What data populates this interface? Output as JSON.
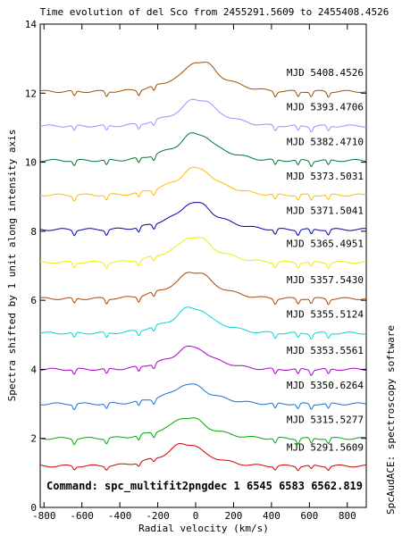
{
  "chart_data": {
    "type": "line",
    "title": "Time evolution of del Sco  from 2455291.5609 to 2455408.4526",
    "xlabel": "Radial velocity (km/s)",
    "ylabel": "Spectra shifted by 1 unit along intensity axis",
    "right_label": "SpcAudACE: spectroscopy software",
    "command": "Command: spc_multifit2pngdec 1 6545 6583 6562.819",
    "xlim": [
      -820,
      900
    ],
    "ylim": [
      0,
      14
    ],
    "x_ticks": [
      -800,
      -600,
      -400,
      -200,
      0,
      200,
      400,
      600,
      800
    ],
    "x_tick_labels": [
      "-800",
      "-600",
      "-400",
      "-200",
      "0",
      "200",
      "400",
      "600",
      "800"
    ],
    "y_ticks": [
      0,
      2,
      4,
      6,
      8,
      10,
      12,
      14
    ],
    "y_tick_labels": [
      "0",
      "2",
      "4",
      "6",
      "8",
      "10",
      "12",
      "14"
    ],
    "grid": false,
    "series": [
      {
        "name": "MJD 5291.5609",
        "color": "#cc0000",
        "baseline": 1.2,
        "peak": 1.95,
        "dip": 0.1,
        "core_width": 70,
        "core_center": -55,
        "wing_width": 150
      },
      {
        "name": "MJD 5315.5277",
        "color": "#00aa00",
        "baseline": 2.0,
        "peak": 2.7,
        "dip": 0.15,
        "core_width": 70,
        "core_center": -45,
        "wing_width": 150
      },
      {
        "name": "MJD 5350.6264",
        "color": "#1a6fd6",
        "baseline": 3.0,
        "peak": 3.65,
        "dip": 0.15,
        "core_width": 70,
        "core_center": -35,
        "wing_width": 150
      },
      {
        "name": "MJD 5353.5561",
        "color": "#aa00cc",
        "baseline": 4.0,
        "peak": 4.75,
        "dip": 0.15,
        "core_width": 70,
        "core_center": -25,
        "wing_width": 150
      },
      {
        "name": "MJD 5355.5124",
        "color": "#00d6d6",
        "baseline": 5.05,
        "peak": 5.9,
        "dip": 0.15,
        "core_width": 70,
        "core_center": -20,
        "wing_width": 150
      },
      {
        "name": "MJD 5357.5430",
        "color": "#b04400",
        "baseline": 6.05,
        "peak": 6.95,
        "dip": 0.15,
        "core_width": 70,
        "core_center": -10,
        "wing_width": 150
      },
      {
        "name": "MJD 5365.4951",
        "color": "#eeee00",
        "baseline": 7.1,
        "peak": 7.95,
        "dip": 0.15,
        "core_width": 70,
        "core_center": -10,
        "wing_width": 150
      },
      {
        "name": "MJD 5371.5041",
        "color": "#0000aa",
        "baseline": 8.05,
        "peak": 8.95,
        "dip": 0.15,
        "core_width": 70,
        "core_center": -5,
        "wing_width": 150
      },
      {
        "name": "MJD 5373.5031",
        "color": "#ffbb00",
        "baseline": 9.05,
        "peak": 9.95,
        "dip": 0.15,
        "core_width": 70,
        "core_center": 0,
        "wing_width": 150
      },
      {
        "name": "MJD 5382.4710",
        "color": "#007733",
        "baseline": 10.05,
        "peak": 10.95,
        "dip": 0.15,
        "core_width": 70,
        "core_center": 0,
        "wing_width": 150
      },
      {
        "name": "MJD 5393.4706",
        "color": "#aa88ff",
        "baseline": 11.05,
        "peak": 11.95,
        "dip": 0.15,
        "core_width": 70,
        "core_center": 10,
        "wing_width": 150
      },
      {
        "name": "MJD 5408.4526",
        "color": "#a05000",
        "baseline": 12.05,
        "peak": 13.05,
        "dip": 0.15,
        "core_width": 70,
        "core_center": 20,
        "wing_width": 150
      }
    ]
  }
}
